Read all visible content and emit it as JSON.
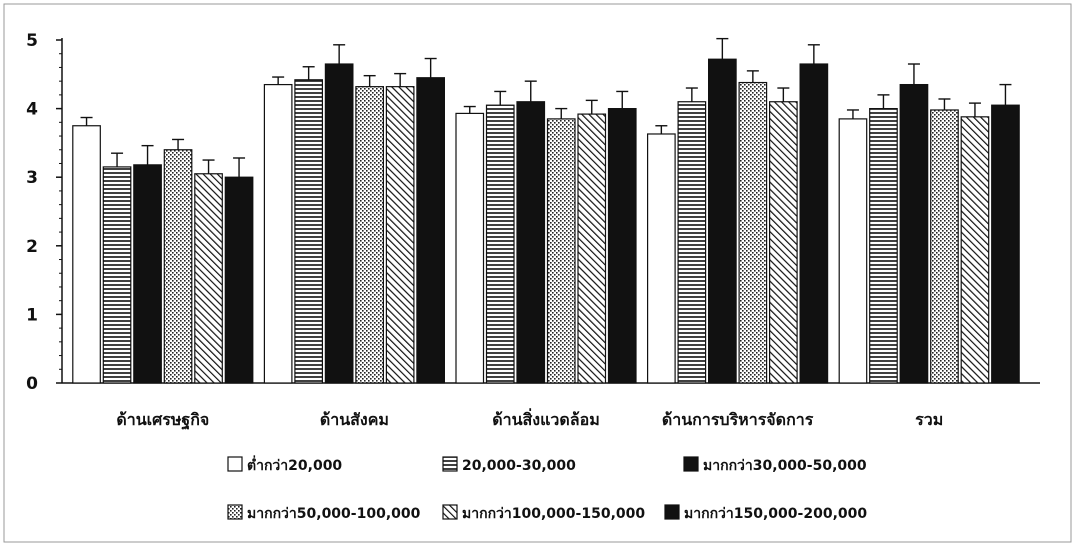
{
  "chart_data": {
    "type": "bar",
    "categories": [
      "ด้านเศรษฐกิจ",
      "ด้านสังคม",
      "ด้านสิ่งแวดล้อม",
      "ด้านการบริหารจัดการ",
      "รวม"
    ],
    "ylim": [
      0,
      5
    ],
    "yticks": [
      0,
      1,
      2,
      3,
      4,
      5
    ],
    "grid": false,
    "error_bars": true,
    "legend_position": "bottom",
    "series": [
      {
        "name": "ต่ำกว่า20,000",
        "pattern": "white",
        "values": [
          3.75,
          4.35,
          3.93,
          3.63,
          3.85
        ],
        "errors": [
          0.12,
          0.11,
          0.1,
          0.12,
          0.13
        ]
      },
      {
        "name": "20,000-30,000",
        "pattern": "horizontal-lines",
        "values": [
          3.15,
          4.42,
          4.05,
          4.1,
          4.0
        ],
        "errors": [
          0.2,
          0.19,
          0.2,
          0.2,
          0.2
        ]
      },
      {
        "name": "มากกว่า30,000-50,000",
        "pattern": "black",
        "values": [
          3.18,
          4.65,
          4.1,
          4.72,
          4.35
        ],
        "errors": [
          0.28,
          0.28,
          0.3,
          0.3,
          0.3
        ]
      },
      {
        "name": "มากกว่า50,000-100,000",
        "pattern": "dots",
        "values": [
          3.4,
          4.32,
          3.85,
          4.38,
          3.98
        ],
        "errors": [
          0.15,
          0.16,
          0.15,
          0.17,
          0.16
        ]
      },
      {
        "name": "มากกว่า100,000-150,000",
        "pattern": "diagonal-lines",
        "values": [
          3.05,
          4.32,
          3.92,
          4.1,
          3.88
        ],
        "errors": [
          0.2,
          0.19,
          0.2,
          0.2,
          0.2
        ]
      },
      {
        "name": "มากกว่า150,000-200,000",
        "pattern": "black",
        "values": [
          3.0,
          4.45,
          4.0,
          4.65,
          4.05
        ],
        "errors": [
          0.28,
          0.28,
          0.25,
          0.28,
          0.3
        ]
      }
    ]
  }
}
